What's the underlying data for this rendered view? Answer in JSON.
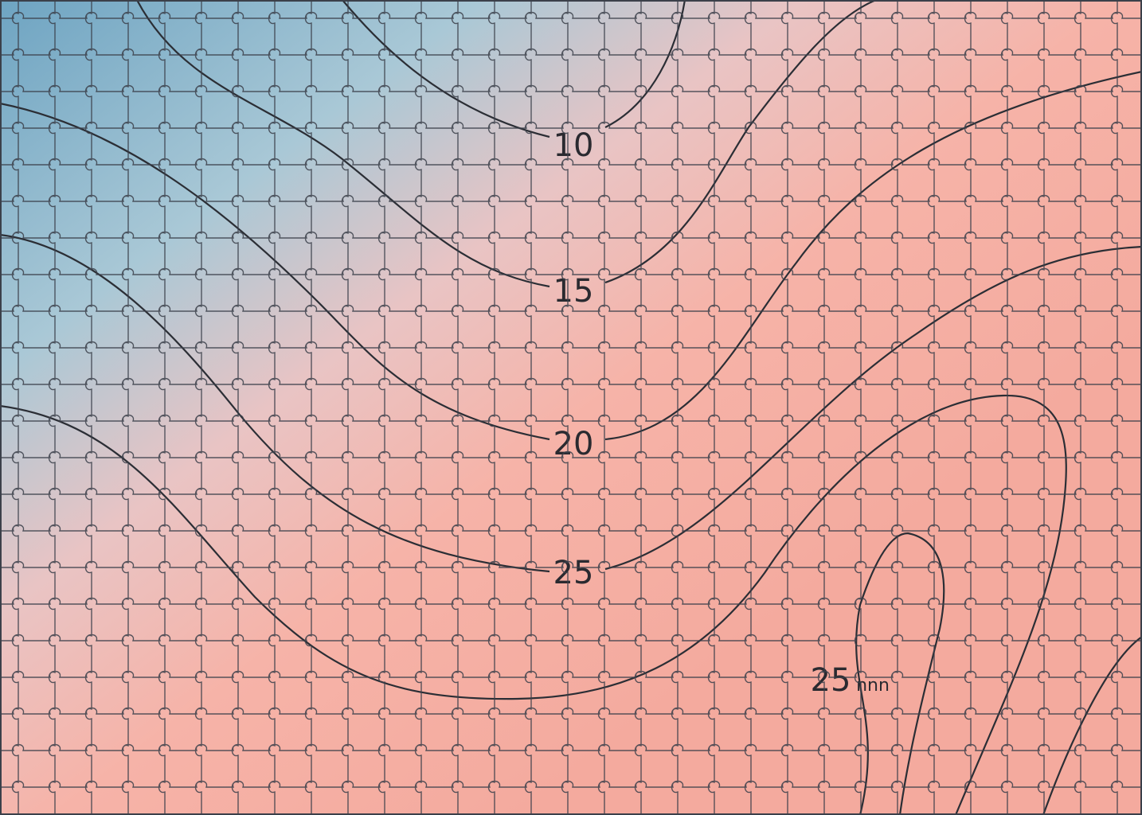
{
  "puzzle": {
    "labels": [
      "10",
      "15",
      "20",
      "25",
      "25",
      "nnn"
    ]
  }
}
